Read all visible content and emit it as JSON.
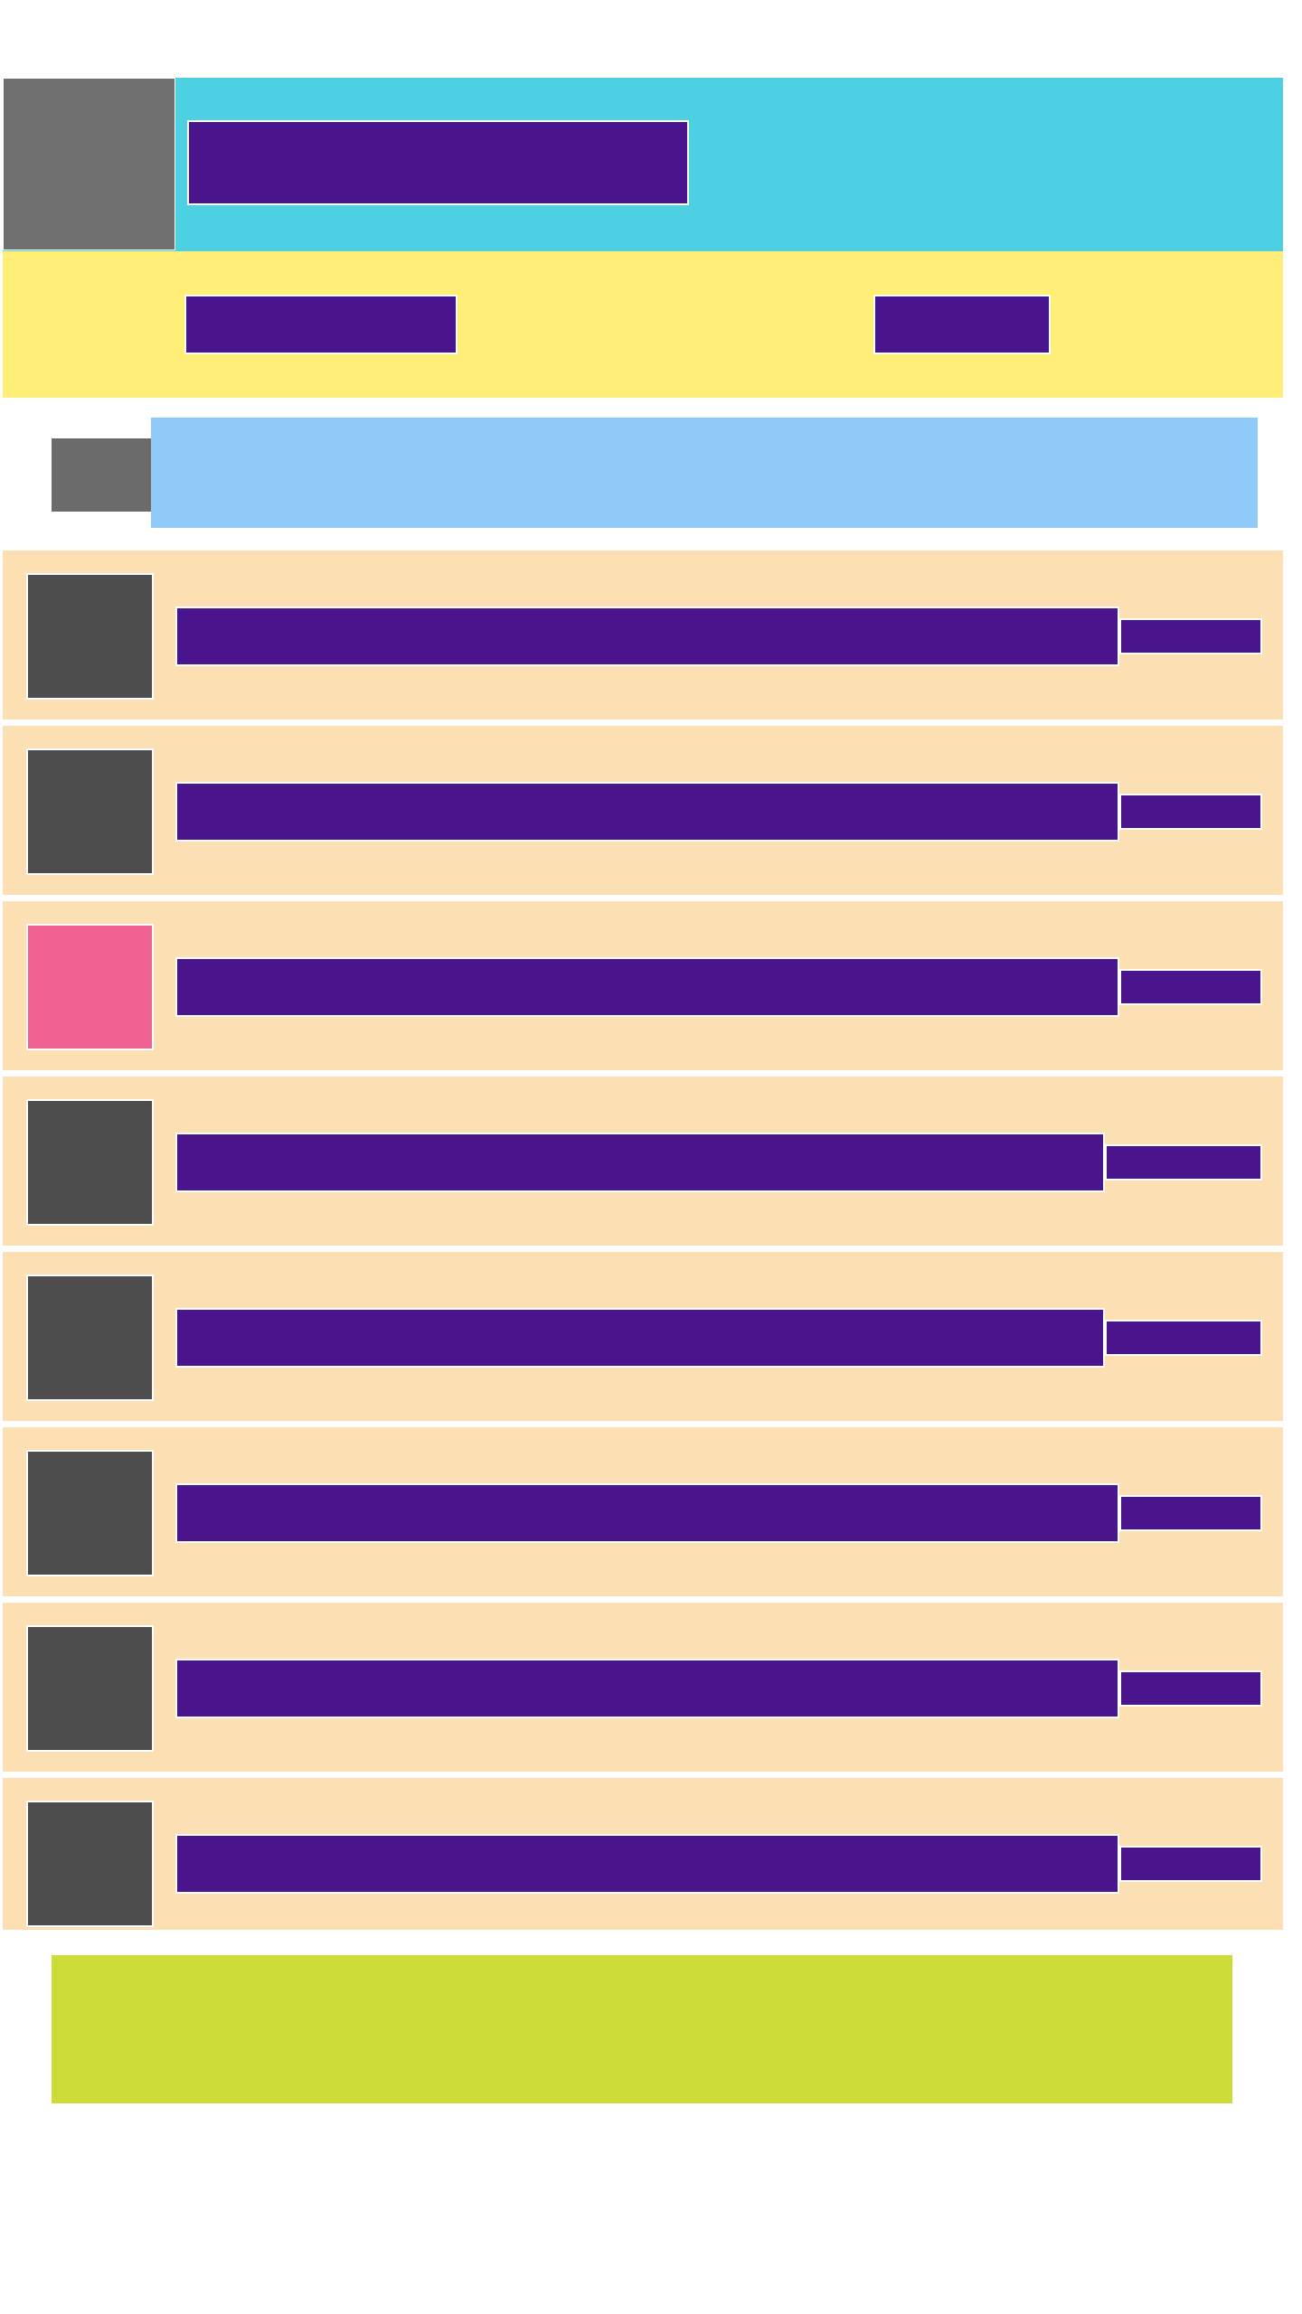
{
  "header": {
    "title": ""
  },
  "tabs": [
    {
      "label": ""
    },
    {
      "label": ""
    }
  ],
  "search": {
    "placeholder": "",
    "value": ""
  },
  "list": {
    "items": [
      {
        "title": "",
        "meta": "",
        "thumb_color": "#4D4D4D"
      },
      {
        "title": "",
        "meta": "",
        "thumb_color": "#4D4D4D"
      },
      {
        "title": "",
        "meta": "",
        "thumb_color": "#F06292"
      },
      {
        "title": "",
        "meta": "",
        "thumb_color": "#4D4D4D"
      },
      {
        "title": "",
        "meta": "",
        "thumb_color": "#4D4D4D"
      },
      {
        "title": "",
        "meta": "",
        "thumb_color": "#4D4D4D"
      },
      {
        "title": "",
        "meta": "",
        "thumb_color": "#4D4D4D"
      },
      {
        "title": "",
        "meta": "",
        "thumb_color": "#4D4D4D"
      }
    ]
  },
  "colors": {
    "header_bg": "#4DD0E1",
    "tabbar_bg": "#FFEE77",
    "search_bg": "#90CAF9",
    "list_bg": "#FCE0B4",
    "primary": "#4A148C",
    "banner_bg": "#CDDC39",
    "logo_bg": "#707070",
    "search_button_bg": "#6B6B6B"
  },
  "icons": {
    "logo": "app-logo-icon",
    "search": "search-icon"
  }
}
